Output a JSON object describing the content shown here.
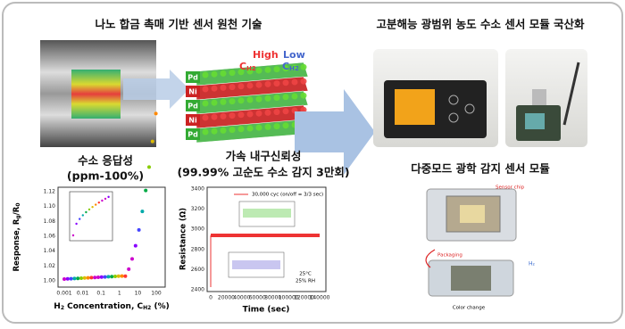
{
  "header": {
    "left": "나노 합금 촉매 기반 센서 원천 기술",
    "right": "고분해능 광범위 농도 수소 센서 모듈 국산화"
  },
  "catalyst": {
    "layers": [
      "Pd",
      "Ni",
      "Pd",
      "Ni",
      "Pd"
    ],
    "high": [
      "High",
      "C",
      "H2"
    ],
    "low": [
      "Low",
      "C",
      "H2"
    ]
  },
  "response_plot": {
    "title": "수소 응답성",
    "subtitle": "(ppm-100%)",
    "ylabel": [
      "Response, R",
      "g",
      "/R",
      "0"
    ],
    "xlabel": [
      "H",
      "2",
      " Concentration, C",
      "H2",
      " (%)"
    ],
    "yticks": [
      "1.12",
      "1.10",
      "1.08",
      "1.06",
      "1.04",
      "1.02",
      "1.00"
    ],
    "xticks": [
      "0.001",
      "0.01",
      "0.1",
      "1",
      "10",
      "100"
    ]
  },
  "durability_plot": {
    "title": "가속 내구신뢰성",
    "subtitle": "(99.99% 고순도 수소 감지 3만회)",
    "ylabel": "Resistance (Ω)",
    "xlabel": "Time (sec)",
    "yticks": [
      "3400",
      "3200",
      "3000",
      "2800",
      "2600",
      "2400"
    ],
    "xticks": [
      "0",
      "20000",
      "40000",
      "60000",
      "80000",
      "100000",
      "120000",
      "140000"
    ],
    "legend": "30,000 cyc (on/off = 3/3 sec)",
    "conditions": [
      "25°C",
      "25% RH"
    ]
  },
  "optical": {
    "title": "다중모드 광학 감지 센서 모듈",
    "labels": [
      "Sensor chip",
      "Packaging",
      "Color change",
      "H₂"
    ]
  }
}
